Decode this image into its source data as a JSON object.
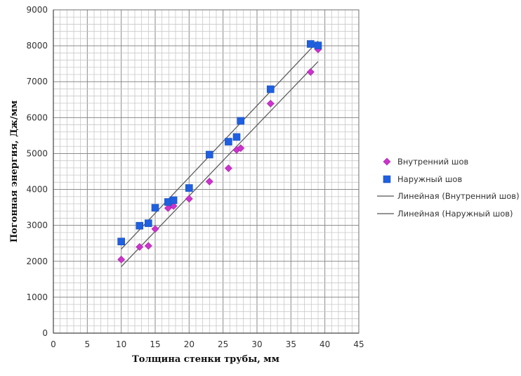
{
  "chart_data": {
    "type": "scatter",
    "title": "",
    "xlabel": "Толщина стенки трубы, мм",
    "ylabel": "Погонная энергия, Дж/мм",
    "xlim": [
      0,
      45
    ],
    "ylim": [
      0,
      9000
    ],
    "x_ticks": [
      0,
      5,
      10,
      15,
      20,
      25,
      30,
      35,
      40,
      45
    ],
    "y_ticks": [
      0,
      1000,
      2000,
      3000,
      4000,
      5000,
      6000,
      7000,
      8000,
      9000
    ],
    "grid": true,
    "legend_position": "right",
    "series": [
      {
        "name": "Внутренний шов",
        "marker": "diamond",
        "color": "#cc33cc",
        "points": [
          [
            10,
            2050
          ],
          [
            12.7,
            2400
          ],
          [
            14,
            2430
          ],
          [
            15,
            2900
          ],
          [
            16.9,
            3480
          ],
          [
            17.7,
            3540
          ],
          [
            20,
            3740
          ],
          [
            23,
            4220
          ],
          [
            25.8,
            4590
          ],
          [
            27,
            5100
          ],
          [
            27.6,
            5150
          ],
          [
            32,
            6390
          ],
          [
            37.9,
            7270
          ],
          [
            39,
            7900
          ]
        ]
      },
      {
        "name": "Наружный шов",
        "marker": "square",
        "color": "#1f5fe0",
        "points": [
          [
            10,
            2550
          ],
          [
            12.7,
            2990
          ],
          [
            14,
            3060
          ],
          [
            15,
            3490
          ],
          [
            16.9,
            3650
          ],
          [
            17.7,
            3700
          ],
          [
            20,
            4040
          ],
          [
            23,
            4970
          ],
          [
            25.8,
            5330
          ],
          [
            27,
            5460
          ],
          [
            27.6,
            5910
          ],
          [
            32,
            6790
          ],
          [
            37.9,
            8050
          ],
          [
            39,
            8010
          ]
        ]
      }
    ],
    "trendlines": [
      {
        "name": "Линейная (Внутренний шов)",
        "type": "linear",
        "color": "#555555",
        "from": [
          10,
          1850
        ],
        "to": [
          39,
          7560
        ]
      },
      {
        "name": "Линейная (Наружный шов)",
        "type": "linear",
        "color": "#555555",
        "from": [
          10,
          2340
        ],
        "to": [
          39,
          8130
        ]
      }
    ]
  }
}
